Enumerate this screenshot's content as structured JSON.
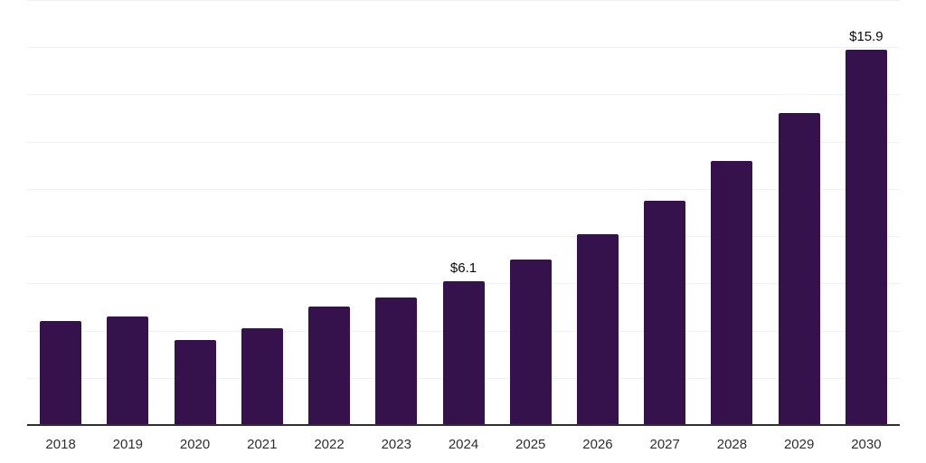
{
  "chart_data": {
    "type": "bar",
    "categories": [
      "2018",
      "2019",
      "2020",
      "2021",
      "2022",
      "2023",
      "2024",
      "2025",
      "2026",
      "2027",
      "2028",
      "2029",
      "2030"
    ],
    "values": [
      4.4,
      4.6,
      3.6,
      4.1,
      5.0,
      5.4,
      6.1,
      7.0,
      8.1,
      9.5,
      11.2,
      13.2,
      15.9
    ],
    "data_labels": {
      "2024": "$6.1",
      "2030": "$15.9"
    },
    "title": "",
    "xlabel": "",
    "ylabel": "",
    "ylim": [
      0,
      18
    ],
    "gridline_step": 2,
    "grid": "horizontal",
    "legend": "none",
    "colors": {
      "bar": "#35124B",
      "gridline": "#f1f1f1",
      "axis_line": "#2f2f2f",
      "value_label": "#0a0a0a",
      "tick_label": "#2e2e2e",
      "background": "#ffffff"
    }
  }
}
